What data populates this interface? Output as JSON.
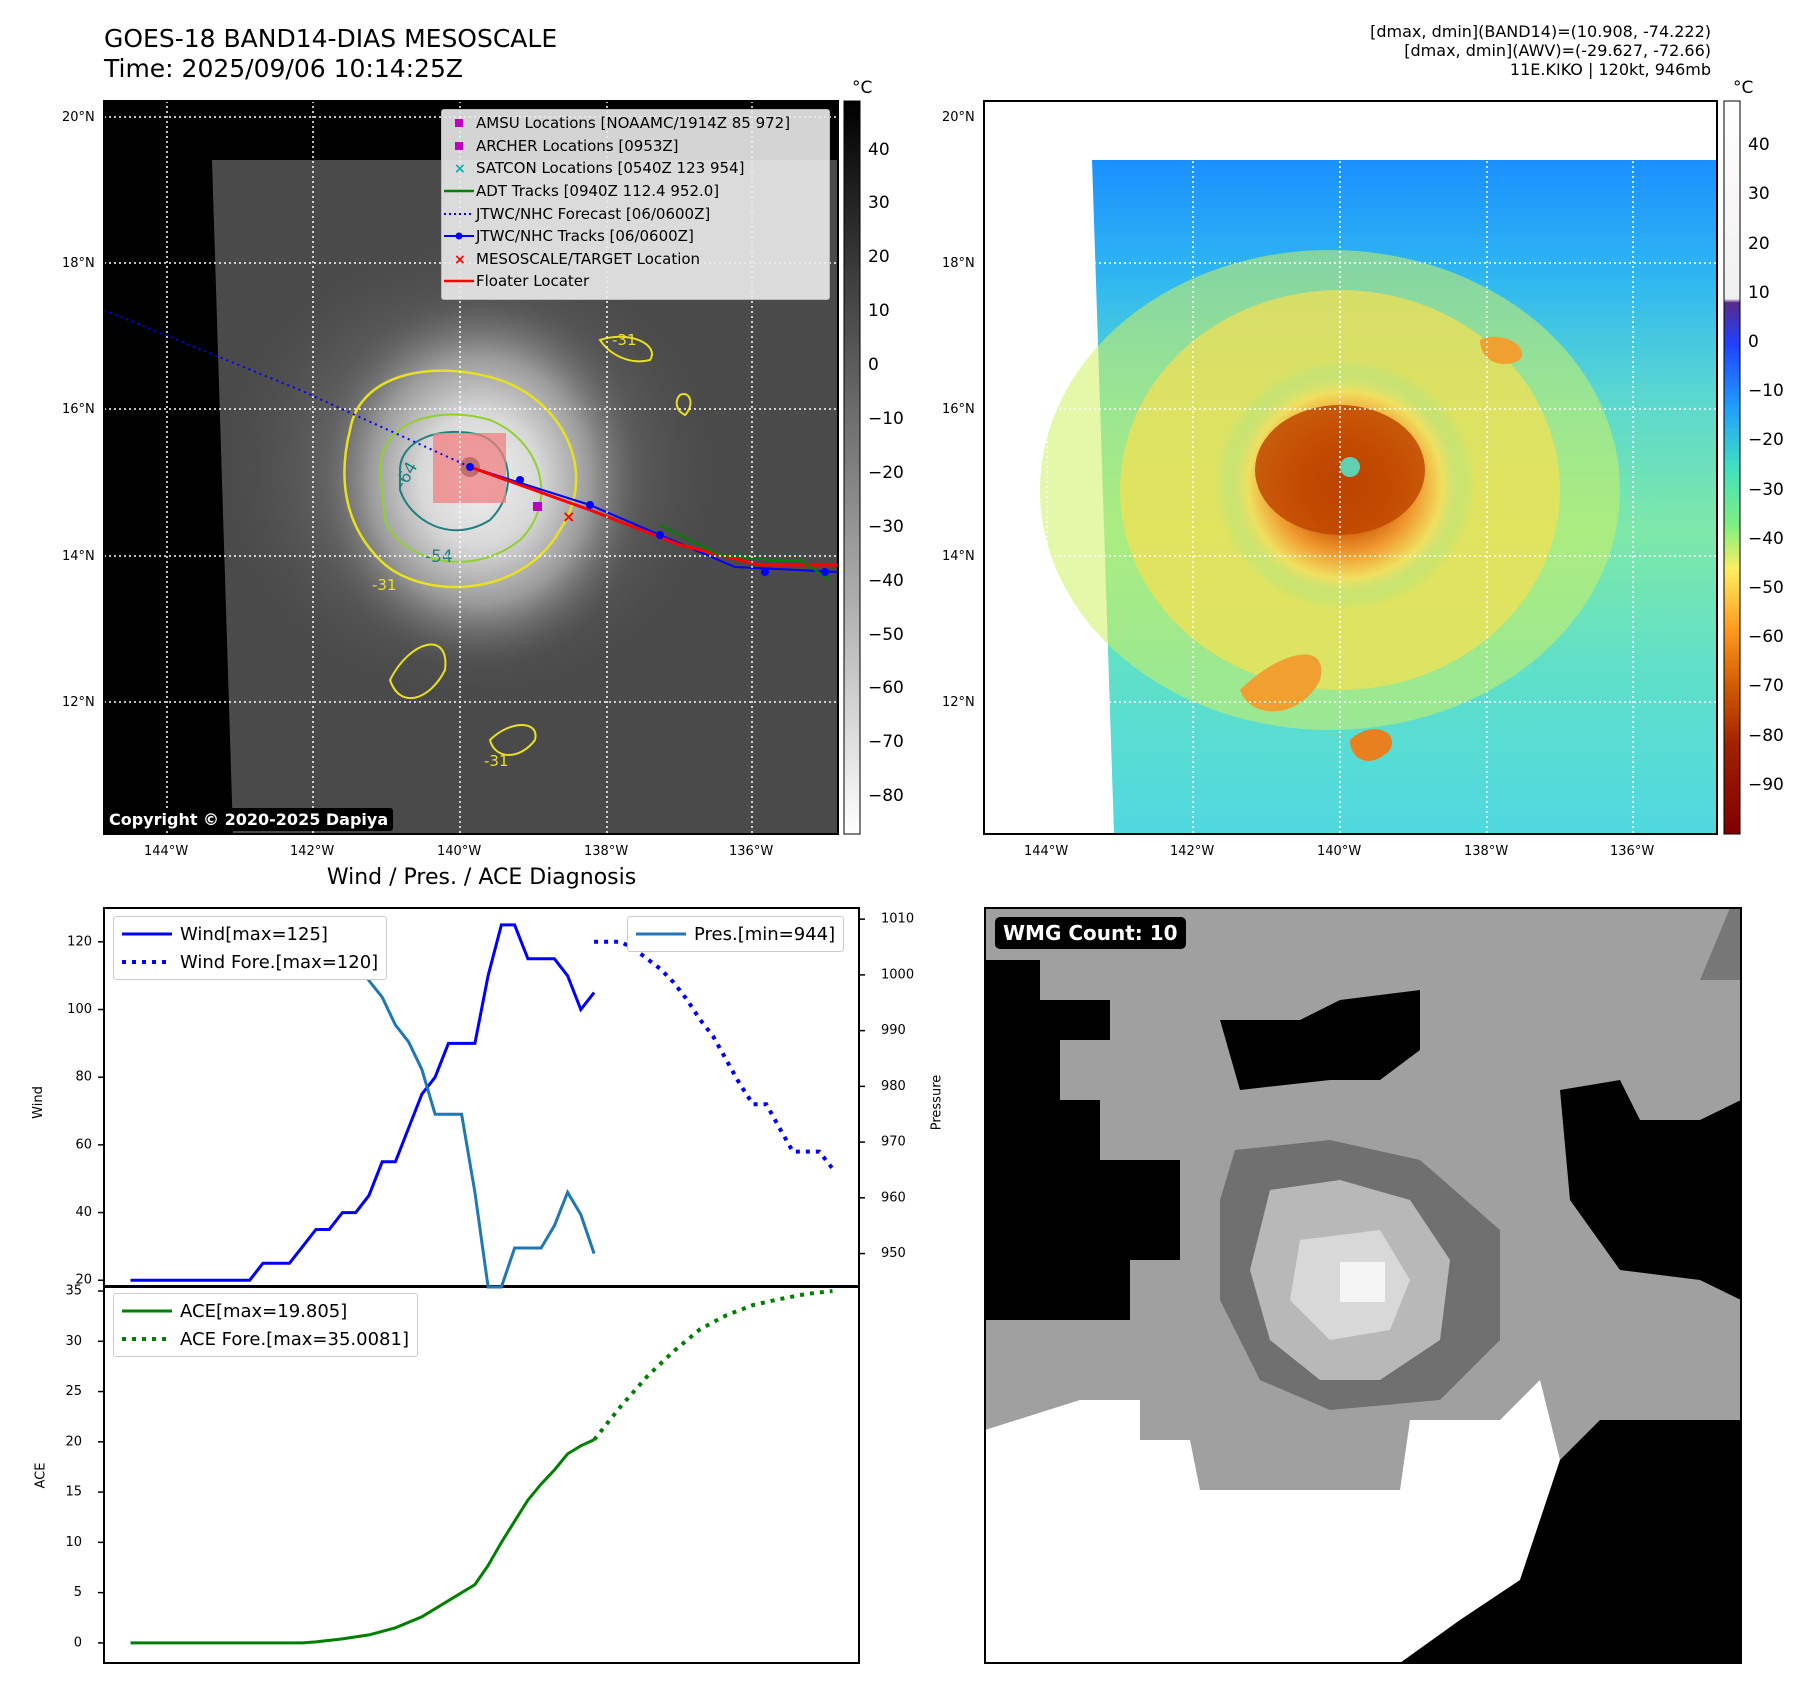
{
  "header": {
    "title_line1": "GOES-18 BAND14-DIAS MESOSCALE",
    "title_line2": "Time: 2025/09/06 10:14:25Z",
    "info_line1": "[dmax, dmin](BAND14)=(10.908, -74.222)",
    "info_line2": "[dmax, dmin](AWV)=(-29.627, -72.66)",
    "info_line3": "11E.KIKO | 120kt, 946mb"
  },
  "map": {
    "lon_labels": [
      "144°W",
      "142°W",
      "140°W",
      "138°W",
      "136°W"
    ],
    "lat_labels": [
      "20°N",
      "18°N",
      "16°N",
      "14°N",
      "12°N"
    ],
    "copyright": "Copyright © 2020-2025 Dapiya",
    "contour_labels": [
      "-64",
      "-54",
      "-31",
      "-31",
      "-31"
    ],
    "legend": [
      {
        "label": "AMSU Locations [NOAAMC/1914Z 85 972]",
        "color": "#c000c0",
        "marker": "square"
      },
      {
        "label": "ARCHER Locations [0953Z]",
        "color": "#c000c0",
        "marker": "square"
      },
      {
        "label": "SATCON Locations [0540Z 123 954]",
        "color": "#00b0b0",
        "marker": "x"
      },
      {
        "label": "ADT Tracks [0940Z 112.4 952.0]",
        "color": "#008000",
        "marker": "line"
      },
      {
        "label": "JTWC/NHC Forecast [06/0600Z]",
        "color": "#0000ff",
        "marker": "dotted"
      },
      {
        "label": "JTWC/NHC Tracks [06/0600Z]",
        "color": "#0000ff",
        "marker": "line-dot"
      },
      {
        "label": "MESOSCALE/TARGET Location",
        "color": "#ff0000",
        "marker": "x"
      },
      {
        "label": "Floater Locater",
        "color": "#ff0000",
        "marker": "line"
      }
    ]
  },
  "colorbar_left": {
    "unit": "°C",
    "ticks": [
      "40",
      "30",
      "20",
      "10",
      "0",
      "−10",
      "−20",
      "−30",
      "−40",
      "−50",
      "−60",
      "−70",
      "−80"
    ]
  },
  "colorbar_right": {
    "unit": "°C",
    "ticks": [
      "40",
      "30",
      "20",
      "10",
      "0",
      "−10",
      "−20",
      "−30",
      "−40",
      "−50",
      "−60",
      "−70",
      "−80",
      "−90"
    ]
  },
  "diagnosis": {
    "title": "Wind / Pres. / ACE Diagnosis",
    "wind_ylabel": "Wind",
    "pres_ylabel": "Pressure",
    "ace_ylabel": "ACE",
    "wind_ticks": [
      "120",
      "100",
      "80",
      "60",
      "40",
      "20"
    ],
    "pres_ticks": [
      "1010",
      "1000",
      "990",
      "980",
      "970",
      "960",
      "950"
    ],
    "ace_ticks": [
      "35",
      "30",
      "25",
      "20",
      "15",
      "10",
      "5",
      "0"
    ],
    "legend_wind": "Wind[max=125]",
    "legend_wind_fore": "Wind Fore.[max=120]",
    "legend_pres": "Pres.[min=944]",
    "legend_ace": "ACE[max=19.805]",
    "legend_ace_fore": "ACE Fore.[max=35.0081]"
  },
  "wmg": {
    "badge": "WMG Count: 10"
  },
  "chart_data": [
    {
      "type": "line",
      "title": "Wind / Pres. / ACE Diagnosis",
      "ylabel": "Wind",
      "ylim": [
        18,
        130
      ],
      "xlim": [
        -2,
        55
      ],
      "series": [
        {
          "name": "Wind[max=125]",
          "color": "#0000ff",
          "style": "solid",
          "x": [
            0,
            9,
            10,
            12,
            13,
            14,
            15,
            16,
            17,
            18,
            19,
            20,
            21,
            22,
            23,
            24,
            25,
            26,
            27,
            28,
            29,
            30,
            31,
            32,
            33,
            34,
            35
          ],
          "y": [
            20,
            20,
            25,
            25,
            30,
            35,
            35,
            40,
            40,
            45,
            55,
            55,
            65,
            75,
            80,
            90,
            90,
            90,
            110,
            125,
            125,
            115,
            115,
            115,
            110,
            100,
            105
          ]
        },
        {
          "name": "Wind Fore.[max=120]",
          "color": "#0000ff",
          "style": "dotted",
          "x": [
            35,
            36,
            37,
            38,
            39,
            40,
            41,
            42,
            43,
            44,
            45,
            46,
            47,
            48,
            49,
            50,
            51,
            52,
            53
          ],
          "y": [
            120,
            120,
            120,
            118,
            115,
            112,
            108,
            103,
            97,
            92,
            85,
            78,
            72,
            72,
            65,
            58,
            58,
            58,
            53
          ]
        }
      ]
    },
    {
      "type": "line",
      "ylabel": "Pressure",
      "ylim": [
        944,
        1012
      ],
      "series": [
        {
          "name": "Pres.[min=944]",
          "color": "#1f77b4",
          "style": "solid",
          "x": [
            0,
            9,
            10,
            11,
            12,
            13,
            14,
            15,
            16,
            17,
            18,
            19,
            20,
            21,
            22,
            23,
            24,
            25,
            26,
            27,
            28,
            29,
            30,
            31,
            32,
            33,
            34,
            35
          ],
          "y": [
            1010,
            1010,
            1010,
            1009,
            1009,
            1008,
            1007,
            1005,
            1004,
            1002,
            999,
            996,
            991,
            988,
            983,
            975,
            975,
            975,
            961,
            944,
            944,
            951,
            951,
            951,
            955,
            961,
            957,
            950
          ]
        }
      ]
    },
    {
      "type": "line",
      "ylabel": "ACE",
      "ylim": [
        -2,
        35.5
      ],
      "series": [
        {
          "name": "ACE[max=19.805]",
          "color": "#008000",
          "style": "solid",
          "x": [
            0,
            13,
            14,
            16,
            18,
            20,
            22,
            24,
            26,
            27,
            28,
            29,
            30,
            31,
            32,
            33,
            34,
            35
          ],
          "y": [
            0,
            0,
            0.1,
            0.4,
            0.8,
            1.5,
            2.6,
            4.2,
            5.8,
            7.7,
            10,
            12.1,
            14.2,
            15.8,
            17.2,
            18.8,
            19.6,
            20.2
          ]
        },
        {
          "name": "ACE Fore.[max=35.0081]",
          "color": "#008000",
          "style": "dotted",
          "x": [
            35,
            37,
            39,
            41,
            43,
            45,
            47,
            49,
            51,
            53
          ],
          "y": [
            20.2,
            23.5,
            26.5,
            29,
            31.2,
            32.6,
            33.6,
            34.2,
            34.7,
            35.0
          ]
        }
      ]
    }
  ]
}
